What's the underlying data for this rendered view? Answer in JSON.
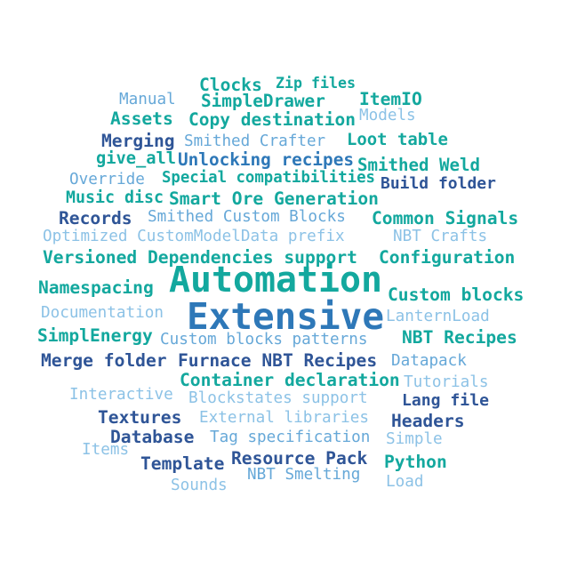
{
  "colors": {
    "teal": "#13a89e",
    "cyan": "#1ca3c7",
    "blue": "#2e78b8",
    "navy": "#2f5597",
    "light": "#66a8d8",
    "pale": "#8cc2e6"
  },
  "words": [
    {
      "id": "clocks",
      "text": "Clocks",
      "c": "teal",
      "b": true
    },
    {
      "id": "zip-files",
      "text": "Zip files",
      "c": "teal",
      "b": true
    },
    {
      "id": "manual",
      "text": "Manual",
      "c": "light",
      "b": false
    },
    {
      "id": "simpledrawer",
      "text": "SimpleDrawer",
      "c": "teal",
      "b": true
    },
    {
      "id": "itemio",
      "text": "ItemIO",
      "c": "teal",
      "b": true
    },
    {
      "id": "assets",
      "text": "Assets",
      "c": "teal",
      "b": true
    },
    {
      "id": "copy-destination",
      "text": "Copy destination",
      "c": "teal",
      "b": true
    },
    {
      "id": "models",
      "text": "Models",
      "c": "pale",
      "b": false
    },
    {
      "id": "merging",
      "text": "Merging",
      "c": "navy",
      "b": true
    },
    {
      "id": "smithed-crafter",
      "text": "Smithed Crafter",
      "c": "light",
      "b": false
    },
    {
      "id": "loot-table",
      "text": "Loot table",
      "c": "teal",
      "b": true
    },
    {
      "id": "give-all",
      "text": "give_all",
      "c": "teal",
      "b": true
    },
    {
      "id": "unlocking-recipes",
      "text": "Unlocking recipes",
      "c": "blue",
      "b": true
    },
    {
      "id": "smithed-weld",
      "text": "Smithed Weld",
      "c": "teal",
      "b": true
    },
    {
      "id": "override",
      "text": "Override",
      "c": "light",
      "b": false
    },
    {
      "id": "special-compatibilities",
      "text": "Special compatibilities",
      "c": "teal",
      "b": true
    },
    {
      "id": "build-folder",
      "text": "Build folder",
      "c": "navy",
      "b": true
    },
    {
      "id": "music-disc",
      "text": "Music disc",
      "c": "teal",
      "b": true
    },
    {
      "id": "smart-ore-generation",
      "text": "Smart Ore Generation",
      "c": "teal",
      "b": true
    },
    {
      "id": "records",
      "text": "Records",
      "c": "navy",
      "b": true
    },
    {
      "id": "smithed-custom-blocks",
      "text": "Smithed Custom Blocks",
      "c": "light",
      "b": false
    },
    {
      "id": "common-signals",
      "text": "Common Signals",
      "c": "teal",
      "b": true
    },
    {
      "id": "optimized-cmd-prefix",
      "text": "Optimized CustomModelData prefix",
      "c": "pale",
      "b": false
    },
    {
      "id": "nbt-crafts",
      "text": "NBT Crafts",
      "c": "pale",
      "b": false
    },
    {
      "id": "versioned",
      "text": "Versioned",
      "c": "teal",
      "b": true
    },
    {
      "id": "dependencies-support",
      "text": "Dependencies support",
      "c": "teal",
      "b": true
    },
    {
      "id": "configuration",
      "text": "Configuration",
      "c": "teal",
      "b": true
    },
    {
      "id": "namespacing",
      "text": "Namespacing",
      "c": "teal",
      "b": true
    },
    {
      "id": "automation",
      "text": "Automation",
      "c": "teal",
      "b": true
    },
    {
      "id": "custom-blocks",
      "text": "Custom blocks",
      "c": "teal",
      "b": true
    },
    {
      "id": "documentation",
      "text": "Documentation",
      "c": "pale",
      "b": false
    },
    {
      "id": "extensive",
      "text": "Extensive",
      "c": "blue",
      "b": true
    },
    {
      "id": "lanternload",
      "text": "LanternLoad",
      "c": "pale",
      "b": false
    },
    {
      "id": "simplenergy",
      "text": "SimplEnergy",
      "c": "teal",
      "b": true
    },
    {
      "id": "custom-blocks-patterns",
      "text": "Custom blocks patterns",
      "c": "light",
      "b": false
    },
    {
      "id": "nbt-recipes",
      "text": "NBT Recipes",
      "c": "teal",
      "b": true
    },
    {
      "id": "merge-folder",
      "text": "Merge folder",
      "c": "navy",
      "b": true
    },
    {
      "id": "furnace-nbt-recipes",
      "text": "Furnace NBT Recipes",
      "c": "navy",
      "b": true
    },
    {
      "id": "datapack",
      "text": "Datapack",
      "c": "light",
      "b": false
    },
    {
      "id": "container-declaration",
      "text": "Container declaration",
      "c": "teal",
      "b": true
    },
    {
      "id": "tutorials",
      "text": "Tutorials",
      "c": "pale",
      "b": false
    },
    {
      "id": "interactive",
      "text": "Interactive",
      "c": "pale",
      "b": false
    },
    {
      "id": "blockstates-support",
      "text": "Blockstates support",
      "c": "pale",
      "b": false
    },
    {
      "id": "lang-file",
      "text": "Lang file",
      "c": "navy",
      "b": true
    },
    {
      "id": "textures",
      "text": "Textures",
      "c": "navy",
      "b": true
    },
    {
      "id": "external-libraries",
      "text": "External libraries",
      "c": "pale",
      "b": false
    },
    {
      "id": "headers",
      "text": "Headers",
      "c": "navy",
      "b": true
    },
    {
      "id": "database",
      "text": "Database",
      "c": "navy",
      "b": true
    },
    {
      "id": "tag-specification",
      "text": "Tag specification",
      "c": "light",
      "b": false
    },
    {
      "id": "simple",
      "text": "Simple",
      "c": "pale",
      "b": false
    },
    {
      "id": "items",
      "text": "Items",
      "c": "pale",
      "b": false
    },
    {
      "id": "template",
      "text": "Template",
      "c": "navy",
      "b": true
    },
    {
      "id": "resource-pack",
      "text": "Resource Pack",
      "c": "navy",
      "b": true
    },
    {
      "id": "python",
      "text": "Python",
      "c": "teal",
      "b": true
    },
    {
      "id": "nbt-smelting",
      "text": "NBT Smelting",
      "c": "light",
      "b": false
    },
    {
      "id": "sounds",
      "text": "Sounds",
      "c": "pale",
      "b": false
    },
    {
      "id": "load",
      "text": "Load",
      "c": "pale",
      "b": false
    }
  ]
}
